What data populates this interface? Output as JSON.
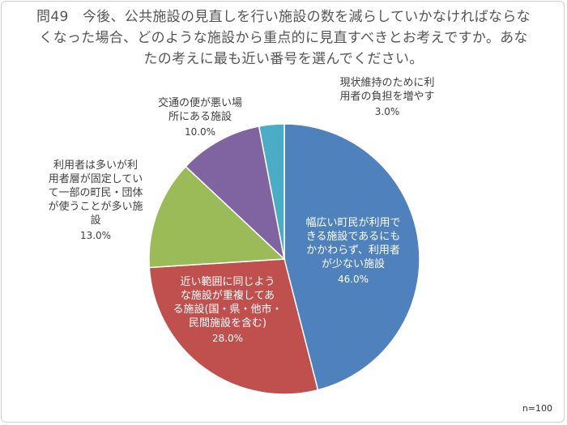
{
  "title": "問49　今後、公共施設の見直しを行い施設の数を減らしていかなければならなくなった場合、どのような施設から重点的に見直すべきとお考えですか。あなたの考えに最も近い番号を選んでください。",
  "note": "n=100",
  "chart_data": {
    "type": "pie",
    "start_angle_deg": 0,
    "direction": "clockwise",
    "slices": [
      {
        "label": [
          "幅広い町民が利用で",
          "きる施設であるにも",
          "かかわらず、利用者",
          "が少ない施設"
        ],
        "value": 46.0,
        "value_text": "46.0%",
        "color": "#4f81bd",
        "label_color": "#ffffff",
        "label_inside": true
      },
      {
        "label": [
          "近い範囲に同じよう",
          "な施設が重複してあ",
          "る施設(国・県・他市・",
          "民間施設を含む)"
        ],
        "value": 28.0,
        "value_text": "28.0%",
        "color": "#c0504d",
        "label_color": "#ffffff",
        "label_inside": true
      },
      {
        "label": [
          "利用者は多いが利",
          "用者層が固定してい",
          "て一部の町民・団体",
          "が使うことが多い施",
          "設"
        ],
        "value": 13.0,
        "value_text": "13.0%",
        "color": "#9bbb59",
        "label_color": "#404040",
        "label_inside": false
      },
      {
        "label": [
          "交通の便が悪い場",
          "所にある施設"
        ],
        "value": 10.0,
        "value_text": "10.0%",
        "color": "#8064a2",
        "label_color": "#404040",
        "label_inside": false
      },
      {
        "label": [
          "現状維持のために利",
          "用者の負担を増やす"
        ],
        "value": 3.0,
        "value_text": "3.0%",
        "color": "#4bacc6",
        "label_color": "#404040",
        "label_inside": false
      }
    ]
  }
}
